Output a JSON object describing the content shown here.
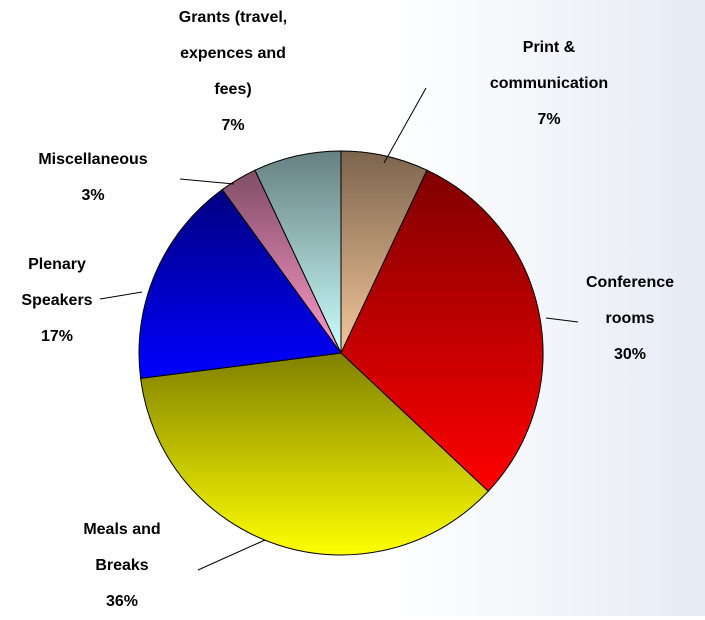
{
  "chart_data": {
    "type": "pie",
    "categories": [
      "Print & communication",
      "Conference rooms",
      "Meals and Breaks",
      "Plenary Speakers",
      "Miscellaneous",
      "Grants (travel, expences and fees)"
    ],
    "values": [
      7,
      30,
      36,
      17,
      3,
      7
    ],
    "value_labels": [
      "7%",
      "30%",
      "36%",
      "17%",
      "3%",
      "7%"
    ],
    "colors": [
      "#f5c79a",
      "#ff0000",
      "#ffff00",
      "#0000ff",
      "#ff99cc",
      "#ccffff"
    ]
  }
}
